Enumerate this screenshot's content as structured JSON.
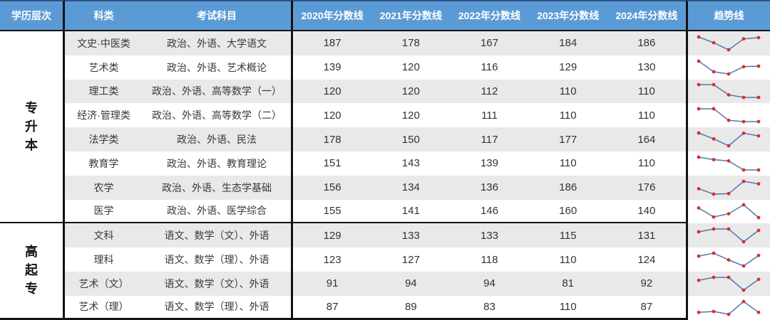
{
  "header": {
    "level": "学历层次",
    "category": "科类",
    "subjects": "考试科目",
    "years": [
      "2020年分数线",
      "2021年分数线",
      "2022年分数线",
      "2023年分数线",
      "2024年分数线"
    ],
    "trend": "趋势线"
  },
  "colors": {
    "header_bg": "#5B9BD5",
    "header_text": "#FFFFFF",
    "stripe_gray": "#E9E9E9",
    "divider_black": "#121212",
    "sparkline_line": "#4C79B4",
    "sparkline_marker": "#E02B2B"
  },
  "sections": [
    {
      "level": "专升本",
      "rows": [
        {
          "category": "文史·中医类",
          "subjects": "政治、外语、大学语文",
          "scores": [
            187,
            178,
            167,
            184,
            186
          ]
        },
        {
          "category": "艺术类",
          "subjects": "政治、外语、艺术概论",
          "scores": [
            139,
            120,
            116,
            129,
            130
          ]
        },
        {
          "category": "理工类",
          "subjects": "政治、外语、高等数学（一）",
          "scores": [
            120,
            120,
            112,
            110,
            110
          ]
        },
        {
          "category": "经济·管理类",
          "subjects": "政治、外语、高等数学（二）",
          "scores": [
            120,
            120,
            111,
            110,
            110
          ]
        },
        {
          "category": "法学类",
          "subjects": "政治、外语、民法",
          "scores": [
            178,
            150,
            117,
            177,
            164
          ]
        },
        {
          "category": "教育学",
          "subjects": "政治、外语、教育理论",
          "scores": [
            151,
            143,
            139,
            110,
            110
          ]
        },
        {
          "category": "农学",
          "subjects": "政治、外语、生态学基础",
          "scores": [
            156,
            134,
            136,
            186,
            176
          ]
        },
        {
          "category": "医学",
          "subjects": "政治、外语、医学综合",
          "scores": [
            155,
            141,
            146,
            160,
            140
          ]
        }
      ]
    },
    {
      "level": "高起专",
      "rows": [
        {
          "category": "文科",
          "subjects": "语文、数学（文）、外语",
          "scores": [
            129,
            133,
            133,
            115,
            131
          ]
        },
        {
          "category": "理科",
          "subjects": "语文、数学（理）、外语",
          "scores": [
            123,
            127,
            118,
            110,
            124
          ]
        },
        {
          "category": "艺术（文）",
          "subjects": "语文、数学（文）、外语",
          "scores": [
            91,
            94,
            94,
            81,
            92
          ]
        },
        {
          "category": "艺术（理）",
          "subjects": "语文、数学（理）、外语",
          "scores": [
            87,
            89,
            83,
            110,
            87
          ]
        }
      ]
    }
  ],
  "chart_data": {
    "type": "table",
    "title": "成人高考历年分数线（2020-2024）",
    "columns": [
      "学历层次",
      "科类",
      "考试科目",
      "2020年分数线",
      "2021年分数线",
      "2022年分数线",
      "2023年分数线",
      "2024年分数线",
      "趋势线"
    ],
    "trend_column_note": "每行趋势线为该行5个年度分数的折线小图，蓝色折线、红色数据点",
    "rows": [
      [
        "专升本",
        "文史·中医类",
        "政治、外语、大学语文",
        187,
        178,
        167,
        184,
        186
      ],
      [
        "专升本",
        "艺术类",
        "政治、外语、艺术概论",
        139,
        120,
        116,
        129,
        130
      ],
      [
        "专升本",
        "理工类",
        "政治、外语、高等数学（一）",
        120,
        120,
        112,
        110,
        110
      ],
      [
        "专升本",
        "经济·管理类",
        "政治、外语、高等数学（二）",
        120,
        120,
        111,
        110,
        110
      ],
      [
        "专升本",
        "法学类",
        "政治、外语、民法",
        178,
        150,
        117,
        177,
        164
      ],
      [
        "专升本",
        "教育学",
        "政治、外语、教育理论",
        151,
        143,
        139,
        110,
        110
      ],
      [
        "专升本",
        "农学",
        "政治、外语、生态学基础",
        156,
        134,
        136,
        186,
        176
      ],
      [
        "专升本",
        "医学",
        "政治、外语、医学综合",
        155,
        141,
        146,
        160,
        140
      ],
      [
        "高起专",
        "文科",
        "语文、数学（文）、外语",
        129,
        133,
        133,
        115,
        131
      ],
      [
        "高起专",
        "理科",
        "语文、数学（理）、外语",
        123,
        127,
        118,
        110,
        124
      ],
      [
        "高起专",
        "艺术（文）",
        "语文、数学（文）、外语",
        91,
        94,
        94,
        81,
        92
      ],
      [
        "高起专",
        "艺术（理）",
        "语文、数学（理）、外语",
        87,
        89,
        83,
        110,
        87
      ]
    ]
  }
}
